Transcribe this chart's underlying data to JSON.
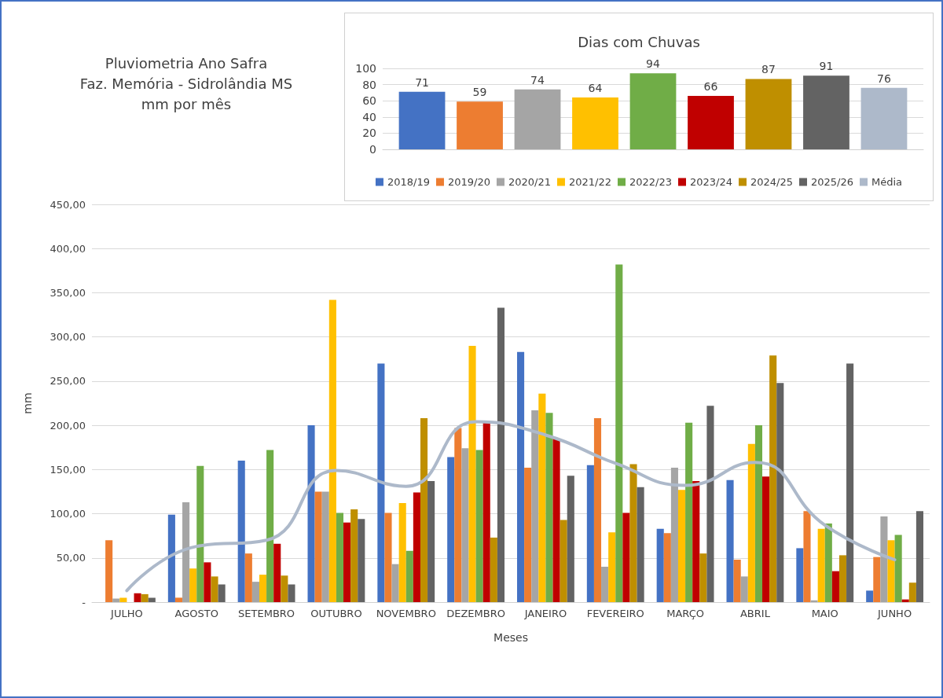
{
  "chart_data": [
    {
      "type": "bar",
      "title": "Pluviometria Ano Safra\nFaz. Memória - Sidrolândia MS\nmm por mês",
      "xlabel": "Meses",
      "ylabel": "mm",
      "categories": [
        "JULHO",
        "AGOSTO",
        "SETEMBRO",
        "OUTUBRO",
        "NOVEMBRO",
        "DEZEMBRO",
        "JANEIRO",
        "FEVEREIRO",
        "MARÇO",
        "ABRIL",
        "MAIO",
        "JUNHO"
      ],
      "series": [
        {
          "color": "#4472c4",
          "values": [
            0,
            99,
            160,
            200,
            270,
            164,
            283,
            155,
            83,
            138,
            61,
            13
          ]
        },
        {
          "color": "#ed7d31",
          "values": [
            70,
            5,
            55,
            125,
            101,
            197,
            152,
            208,
            78,
            48,
            103,
            51
          ]
        },
        {
          "color": "#a5a5a5",
          "values": [
            4,
            113,
            23,
            125,
            43,
            174,
            217,
            40,
            152,
            29,
            2,
            97
          ]
        },
        {
          "color": "#ffc000",
          "values": [
            5,
            38,
            31,
            342,
            112,
            290,
            236,
            79,
            127,
            179,
            83,
            70
          ]
        },
        {
          "color": "#70ad47",
          "values": [
            0,
            154,
            172,
            101,
            58,
            172,
            214,
            382,
            203,
            200,
            89,
            76
          ]
        },
        {
          "color": "#c00000",
          "values": [
            10,
            45,
            66,
            90,
            124,
            203,
            185,
            101,
            137,
            142,
            35,
            3
          ]
        },
        {
          "color": "#bf8f00",
          "values": [
            9,
            29,
            30,
            105,
            208,
            73,
            93,
            156,
            55,
            279,
            53,
            22
          ]
        },
        {
          "color": "#636363",
          "values": [
            5,
            20,
            20,
            94,
            137,
            333,
            143,
            130,
            222,
            248,
            270,
            103
          ]
        },
        {
          "type": "line",
          "color": "#adb9ca",
          "values": [
            13,
            63,
            70,
            149,
            131,
            204,
            189,
            157,
            132,
            158,
            87,
            48
          ]
        }
      ],
      "ylim": [
        0,
        450
      ],
      "yticks": [
        {
          "value": 0,
          "label": "-"
        },
        {
          "value": 50,
          "label": "50,00"
        },
        {
          "value": 100,
          "label": "100,00"
        },
        {
          "value": 150,
          "label": "150,00"
        },
        {
          "value": 200,
          "label": "200,00"
        },
        {
          "value": 250,
          "label": "250,00"
        },
        {
          "value": 300,
          "label": "300,00"
        },
        {
          "value": 350,
          "label": "350,00"
        },
        {
          "value": 400,
          "label": "400,00"
        },
        {
          "value": 450,
          "label": "450,00"
        }
      ],
      "grid": "y",
      "marker": "none"
    },
    {
      "type": "bar",
      "title": "Dias com Chuvas",
      "categories": [
        null
      ],
      "series": [
        {
          "name": "2018/19",
          "color": "#4472c4",
          "values": [
            71
          ]
        },
        {
          "name": "2019/20",
          "color": "#ed7d31",
          "values": [
            59
          ]
        },
        {
          "name": "2020/21",
          "color": "#a5a5a5",
          "values": [
            74
          ]
        },
        {
          "name": "2021/22",
          "color": "#ffc000",
          "values": [
            64
          ]
        },
        {
          "name": "2022/23",
          "color": "#70ad47",
          "values": [
            94
          ]
        },
        {
          "name": "2023/24",
          "color": "#c00000",
          "values": [
            66
          ]
        },
        {
          "name": "2024/25",
          "color": "#bf8f00",
          "values": [
            87
          ]
        },
        {
          "name": "2025/26",
          "color": "#636363",
          "values": [
            91
          ]
        },
        {
          "name": "Média",
          "color": "#adb9ca",
          "values": [
            76
          ]
        }
      ],
      "ylim": [
        0,
        100
      ],
      "yticks": [
        0,
        20,
        40,
        60,
        80,
        100
      ],
      "grid": "y",
      "legend": "bottom",
      "data_labels": true
    }
  ]
}
